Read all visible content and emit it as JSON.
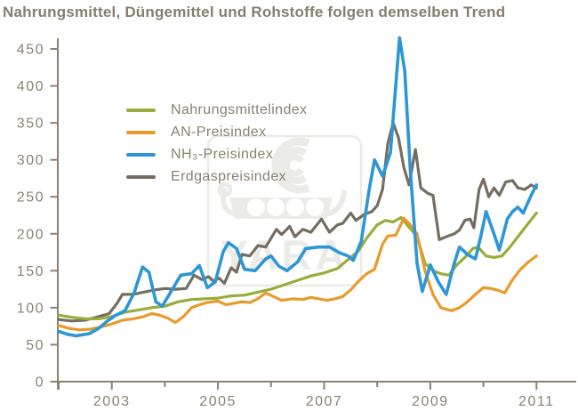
{
  "colors": {
    "text": "#8b8272",
    "axis": "#8b8272",
    "green": "#98ae3b",
    "orange": "#e89b2c",
    "blue": "#2d97d5",
    "gray": "#756e60",
    "watermark": "#ebebe8"
  },
  "watermark": {
    "text": "YARA"
  },
  "legend": {
    "items": [
      {
        "label": "Nahrungsmittelindex",
        "color_key": "green"
      },
      {
        "label": "AN-Preisindex",
        "color_key": "orange"
      },
      {
        "label": "NH₃-Preisindex",
        "color_key": "blue"
      },
      {
        "label": "Erdgaspreisindex",
        "color_key": "gray"
      }
    ]
  },
  "chart_data": {
    "type": "line",
    "title": "Nahrungsmittel, Düngemittel und Rohstoffe folgen demselben Trend",
    "xlabel": "",
    "ylabel": "",
    "grid": false,
    "legend_position": "upper-left-inside",
    "x_axis": {
      "min": 2002,
      "max": 2011.5,
      "ticks": [
        2002,
        2003,
        2004,
        2005,
        2006,
        2007,
        2008,
        2009,
        2010,
        2011
      ],
      "labeled_ticks": [
        2003,
        2005,
        2007,
        2009,
        2011
      ]
    },
    "y_axis": {
      "min": 0,
      "max": 450,
      "ticks": [
        0,
        50,
        100,
        150,
        200,
        250,
        300,
        350,
        400,
        450
      ]
    },
    "series": [
      {
        "name": "Erdgaspreisindex",
        "color_key": "gray",
        "width": 3.2,
        "points": [
          [
            2002.0,
            84
          ],
          [
            2002.25,
            82
          ],
          [
            2002.5,
            83
          ],
          [
            2002.75,
            88
          ],
          [
            2002.95,
            92
          ],
          [
            2003.1,
            106
          ],
          [
            2003.2,
            118
          ],
          [
            2003.4,
            118
          ],
          [
            2003.6,
            121
          ],
          [
            2003.8,
            124
          ],
          [
            2004.0,
            126
          ],
          [
            2004.2,
            125
          ],
          [
            2004.4,
            126
          ],
          [
            2004.55,
            144
          ],
          [
            2004.7,
            138
          ],
          [
            2004.82,
            142
          ],
          [
            2004.92,
            136
          ],
          [
            2005.02,
            140
          ],
          [
            2005.12,
            133
          ],
          [
            2005.25,
            154
          ],
          [
            2005.35,
            148
          ],
          [
            2005.45,
            172
          ],
          [
            2005.6,
            170
          ],
          [
            2005.75,
            184
          ],
          [
            2005.9,
            182
          ],
          [
            2006.1,
            206
          ],
          [
            2006.2,
            199
          ],
          [
            2006.35,
            210
          ],
          [
            2006.45,
            196
          ],
          [
            2006.6,
            206
          ],
          [
            2006.75,
            202
          ],
          [
            2006.95,
            220
          ],
          [
            2007.1,
            202
          ],
          [
            2007.25,
            212
          ],
          [
            2007.35,
            214
          ],
          [
            2007.5,
            228
          ],
          [
            2007.6,
            218
          ],
          [
            2007.75,
            226
          ],
          [
            2007.9,
            230
          ],
          [
            2008.0,
            238
          ],
          [
            2008.1,
            260
          ],
          [
            2008.2,
            322
          ],
          [
            2008.3,
            350
          ],
          [
            2008.4,
            330
          ],
          [
            2008.5,
            290
          ],
          [
            2008.6,
            266
          ],
          [
            2008.72,
            314
          ],
          [
            2008.82,
            262
          ],
          [
            2008.95,
            255
          ],
          [
            2009.05,
            252
          ],
          [
            2009.17,
            192
          ],
          [
            2009.3,
            196
          ],
          [
            2009.45,
            200
          ],
          [
            2009.55,
            205
          ],
          [
            2009.65,
            218
          ],
          [
            2009.75,
            220
          ],
          [
            2009.82,
            208
          ],
          [
            2009.92,
            260
          ],
          [
            2010.0,
            274
          ],
          [
            2010.1,
            250
          ],
          [
            2010.2,
            262
          ],
          [
            2010.3,
            252
          ],
          [
            2010.42,
            270
          ],
          [
            2010.55,
            272
          ],
          [
            2010.65,
            262
          ],
          [
            2010.78,
            260
          ],
          [
            2010.9,
            266
          ],
          [
            2011.0,
            262
          ]
        ]
      },
      {
        "name": "Nahrungsmittelindex",
        "color_key": "green",
        "width": 3.2,
        "points": [
          [
            2002.0,
            90
          ],
          [
            2002.25,
            87
          ],
          [
            2002.5,
            85
          ],
          [
            2002.75,
            85
          ],
          [
            2003.0,
            88
          ],
          [
            2003.25,
            94
          ],
          [
            2003.5,
            97
          ],
          [
            2003.75,
            100
          ],
          [
            2004.0,
            102
          ],
          [
            2004.25,
            108
          ],
          [
            2004.5,
            111
          ],
          [
            2004.75,
            112
          ],
          [
            2005.0,
            113
          ],
          [
            2005.25,
            116
          ],
          [
            2005.5,
            117
          ],
          [
            2005.75,
            121
          ],
          [
            2006.0,
            125
          ],
          [
            2006.25,
            131
          ],
          [
            2006.5,
            137
          ],
          [
            2006.75,
            143
          ],
          [
            2007.0,
            147
          ],
          [
            2007.25,
            153
          ],
          [
            2007.5,
            168
          ],
          [
            2007.65,
            177
          ],
          [
            2007.8,
            194
          ],
          [
            2008.0,
            212
          ],
          [
            2008.15,
            218
          ],
          [
            2008.3,
            216
          ],
          [
            2008.45,
            222
          ],
          [
            2008.6,
            209
          ],
          [
            2008.75,
            196
          ],
          [
            2008.9,
            160
          ],
          [
            2009.05,
            150
          ],
          [
            2009.2,
            146
          ],
          [
            2009.35,
            144
          ],
          [
            2009.5,
            158
          ],
          [
            2009.65,
            168
          ],
          [
            2009.8,
            180
          ],
          [
            2009.9,
            182
          ],
          [
            2010.05,
            170
          ],
          [
            2010.2,
            168
          ],
          [
            2010.35,
            170
          ],
          [
            2010.5,
            182
          ],
          [
            2010.65,
            196
          ],
          [
            2010.8,
            210
          ],
          [
            2011.0,
            228
          ]
        ]
      },
      {
        "name": "AN-Preisindex",
        "color_key": "orange",
        "width": 3.2,
        "points": [
          [
            2002.0,
            76
          ],
          [
            2002.2,
            72
          ],
          [
            2002.4,
            70
          ],
          [
            2002.6,
            71
          ],
          [
            2002.8,
            74
          ],
          [
            2003.0,
            78
          ],
          [
            2003.2,
            83
          ],
          [
            2003.4,
            85
          ],
          [
            2003.6,
            88
          ],
          [
            2003.75,
            92
          ],
          [
            2003.9,
            90
          ],
          [
            2004.05,
            86
          ],
          [
            2004.2,
            80
          ],
          [
            2004.35,
            88
          ],
          [
            2004.5,
            100
          ],
          [
            2004.65,
            104
          ],
          [
            2004.8,
            107
          ],
          [
            2005.0,
            109
          ],
          [
            2005.15,
            104
          ],
          [
            2005.3,
            106
          ],
          [
            2005.45,
            108
          ],
          [
            2005.6,
            107
          ],
          [
            2005.75,
            112
          ],
          [
            2005.9,
            120
          ],
          [
            2006.05,
            115
          ],
          [
            2006.2,
            110
          ],
          [
            2006.4,
            112
          ],
          [
            2006.6,
            111
          ],
          [
            2006.75,
            114
          ],
          [
            2006.9,
            112
          ],
          [
            2007.05,
            110
          ],
          [
            2007.2,
            112
          ],
          [
            2007.35,
            115
          ],
          [
            2007.5,
            124
          ],
          [
            2007.65,
            136
          ],
          [
            2007.8,
            146
          ],
          [
            2007.95,
            152
          ],
          [
            2008.1,
            186
          ],
          [
            2008.2,
            197
          ],
          [
            2008.35,
            198
          ],
          [
            2008.5,
            221
          ],
          [
            2008.6,
            214
          ],
          [
            2008.75,
            200
          ],
          [
            2008.9,
            150
          ],
          [
            2009.05,
            118
          ],
          [
            2009.2,
            100
          ],
          [
            2009.4,
            96
          ],
          [
            2009.55,
            100
          ],
          [
            2009.7,
            108
          ],
          [
            2009.85,
            118
          ],
          [
            2010.0,
            127
          ],
          [
            2010.15,
            126
          ],
          [
            2010.3,
            123
          ],
          [
            2010.4,
            120
          ],
          [
            2010.55,
            138
          ],
          [
            2010.7,
            152
          ],
          [
            2010.85,
            162
          ],
          [
            2011.0,
            170
          ]
        ]
      },
      {
        "name": "NH₃-Preisindex",
        "color_key": "blue",
        "width": 3.6,
        "points": [
          [
            2002.0,
            68
          ],
          [
            2002.17,
            64
          ],
          [
            2002.33,
            62
          ],
          [
            2002.58,
            65
          ],
          [
            2002.75,
            72
          ],
          [
            2002.92,
            82
          ],
          [
            2003.08,
            90
          ],
          [
            2003.25,
            96
          ],
          [
            2003.42,
            120
          ],
          [
            2003.58,
            155
          ],
          [
            2003.7,
            148
          ],
          [
            2003.83,
            108
          ],
          [
            2003.95,
            102
          ],
          [
            2004.1,
            120
          ],
          [
            2004.3,
            144
          ],
          [
            2004.5,
            146
          ],
          [
            2004.65,
            157
          ],
          [
            2004.8,
            127
          ],
          [
            2004.95,
            135
          ],
          [
            2005.1,
            176
          ],
          [
            2005.2,
            188
          ],
          [
            2005.35,
            180
          ],
          [
            2005.5,
            152
          ],
          [
            2005.7,
            150
          ],
          [
            2005.9,
            166
          ],
          [
            2006.0,
            170
          ],
          [
            2006.15,
            156
          ],
          [
            2006.3,
            150
          ],
          [
            2006.5,
            162
          ],
          [
            2006.65,
            180
          ],
          [
            2006.9,
            182
          ],
          [
            2007.1,
            182
          ],
          [
            2007.3,
            174
          ],
          [
            2007.45,
            170
          ],
          [
            2007.55,
            164
          ],
          [
            2007.7,
            190
          ],
          [
            2007.85,
            260
          ],
          [
            2007.95,
            300
          ],
          [
            2008.1,
            278
          ],
          [
            2008.25,
            310
          ],
          [
            2008.42,
            465
          ],
          [
            2008.52,
            420
          ],
          [
            2008.62,
            290
          ],
          [
            2008.75,
            160
          ],
          [
            2008.85,
            122
          ],
          [
            2009.0,
            158
          ],
          [
            2009.15,
            135
          ],
          [
            2009.3,
            118
          ],
          [
            2009.45,
            160
          ],
          [
            2009.55,
            182
          ],
          [
            2009.7,
            172
          ],
          [
            2009.85,
            166
          ],
          [
            2009.95,
            196
          ],
          [
            2010.05,
            230
          ],
          [
            2010.2,
            200
          ],
          [
            2010.3,
            178
          ],
          [
            2010.45,
            220
          ],
          [
            2010.55,
            230
          ],
          [
            2010.65,
            236
          ],
          [
            2010.75,
            228
          ],
          [
            2010.9,
            252
          ],
          [
            2011.0,
            266
          ]
        ]
      }
    ]
  }
}
